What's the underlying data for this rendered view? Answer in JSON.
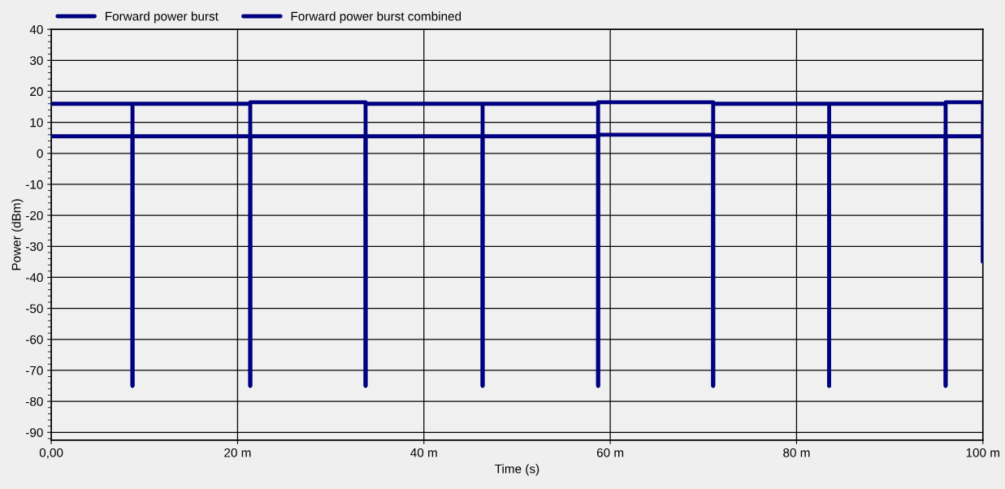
{
  "chart_data": {
    "type": "line",
    "xlabel": "Time (s)",
    "ylabel": "Power (dBm)",
    "xlim": [
      0,
      100
    ],
    "ylim": [
      -92.5,
      40
    ],
    "xticks": [
      {
        "value": 0,
        "label": "0,00"
      },
      {
        "value": 20,
        "label": "20 m"
      },
      {
        "value": 40,
        "label": "40 m"
      },
      {
        "value": 60,
        "label": "60 m"
      },
      {
        "value": 80,
        "label": "80 m"
      },
      {
        "value": 100,
        "label": "100 m"
      }
    ],
    "yticks": [
      -90,
      -80,
      -70,
      -60,
      -50,
      -40,
      -30,
      -20,
      -10,
      0,
      10,
      20,
      30,
      40
    ],
    "grid": true,
    "legend": "top",
    "marker": "none",
    "line_style": "solid",
    "series": [
      {
        "name": "Forward power burst",
        "color": "#000080",
        "x": [
          0,
          8.72,
          8.72,
          8.72,
          21.36,
          21.36,
          21.36,
          33.74,
          33.74,
          33.74,
          46.3,
          46.3,
          46.3,
          58.7,
          58.7,
          58.7,
          71.05,
          71.05,
          71.05,
          83.5,
          83.5,
          83.5,
          96,
          96,
          96,
          100,
          100
        ],
        "values": [
          16,
          16,
          -75,
          16,
          16,
          -75,
          16.5,
          16.5,
          -75,
          16,
          16,
          -75,
          16,
          16,
          -75,
          16.5,
          16.5,
          -75,
          16,
          16,
          -75,
          16,
          16,
          -75,
          16.5,
          16.5,
          -35
        ]
      },
      {
        "name": "Forward power burst combined",
        "color": "#000080",
        "x": [
          0,
          8.72,
          8.72,
          8.72,
          21.36,
          21.36,
          21.36,
          33.74,
          33.74,
          33.74,
          46.3,
          46.3,
          46.3,
          58.7,
          58.7,
          58.7,
          71.05,
          71.05,
          71.05,
          83.5,
          83.5,
          83.5,
          96,
          96,
          96,
          100,
          100
        ],
        "values": [
          5.5,
          5.5,
          -75,
          5.5,
          5.5,
          -75,
          5.5,
          5.5,
          -75,
          5.5,
          5.5,
          -75,
          5.5,
          5.5,
          -75,
          6,
          6,
          -75,
          5.5,
          5.5,
          -75,
          5.5,
          5.5,
          -75,
          5.5,
          5.5,
          -35
        ]
      }
    ]
  }
}
